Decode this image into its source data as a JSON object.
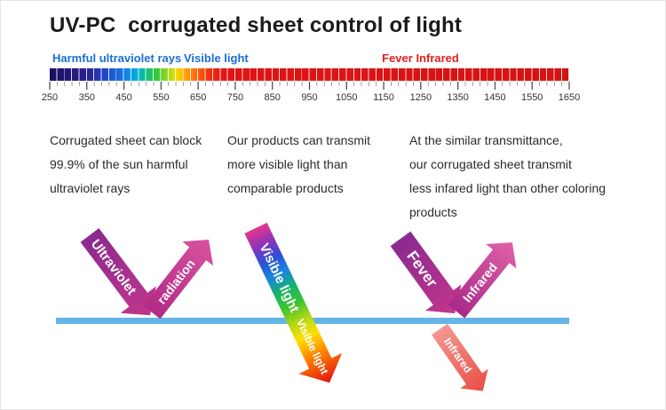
{
  "title": "UV-PC  corrugated sheet control of light",
  "colors": {
    "label-blue": "#1a6fd4",
    "label-red": "#e02020",
    "sheet-blue": "#64b5e6"
  },
  "spectrum": {
    "band_labels": [
      {
        "text": "Harmful ultraviolet rays",
        "color": "#1a6fd4"
      },
      {
        "text": "Visible light",
        "color": "#1a6fd4"
      },
      {
        "text": "Fever Infrared",
        "color": "#e02020"
      }
    ],
    "wavelength_ticks": [
      "250",
      "350",
      "450",
      "550",
      "650",
      "750",
      "850",
      "950",
      "1050",
      "1150",
      "1250",
      "1350",
      "1450",
      "1550",
      "1650"
    ],
    "range_nm": [
      250,
      1650
    ]
  },
  "paragraphs": [
    {
      "lines": [
        "Corrugated sheet can block",
        "99.9% of the sun harmful",
        "ultraviolet rays"
      ]
    },
    {
      "lines": [
        "Our products can transmit",
        "more visible light than",
        "comparable products"
      ]
    },
    {
      "lines": [
        "At the similar transmittance,",
        "our corrugated sheet transmit",
        "less infared light than other coloring",
        "products"
      ]
    }
  ],
  "diagram": {
    "ultraviolet_label": "Ultraviolet",
    "radiation_label": "radiation",
    "visible_light_top_label": "Visible light",
    "visible_light_bottom_label": "Visible light",
    "fever_label": "Fever",
    "infrared_reflected_label": "Infrared",
    "infrared_transmitted_label": "Infrared"
  }
}
